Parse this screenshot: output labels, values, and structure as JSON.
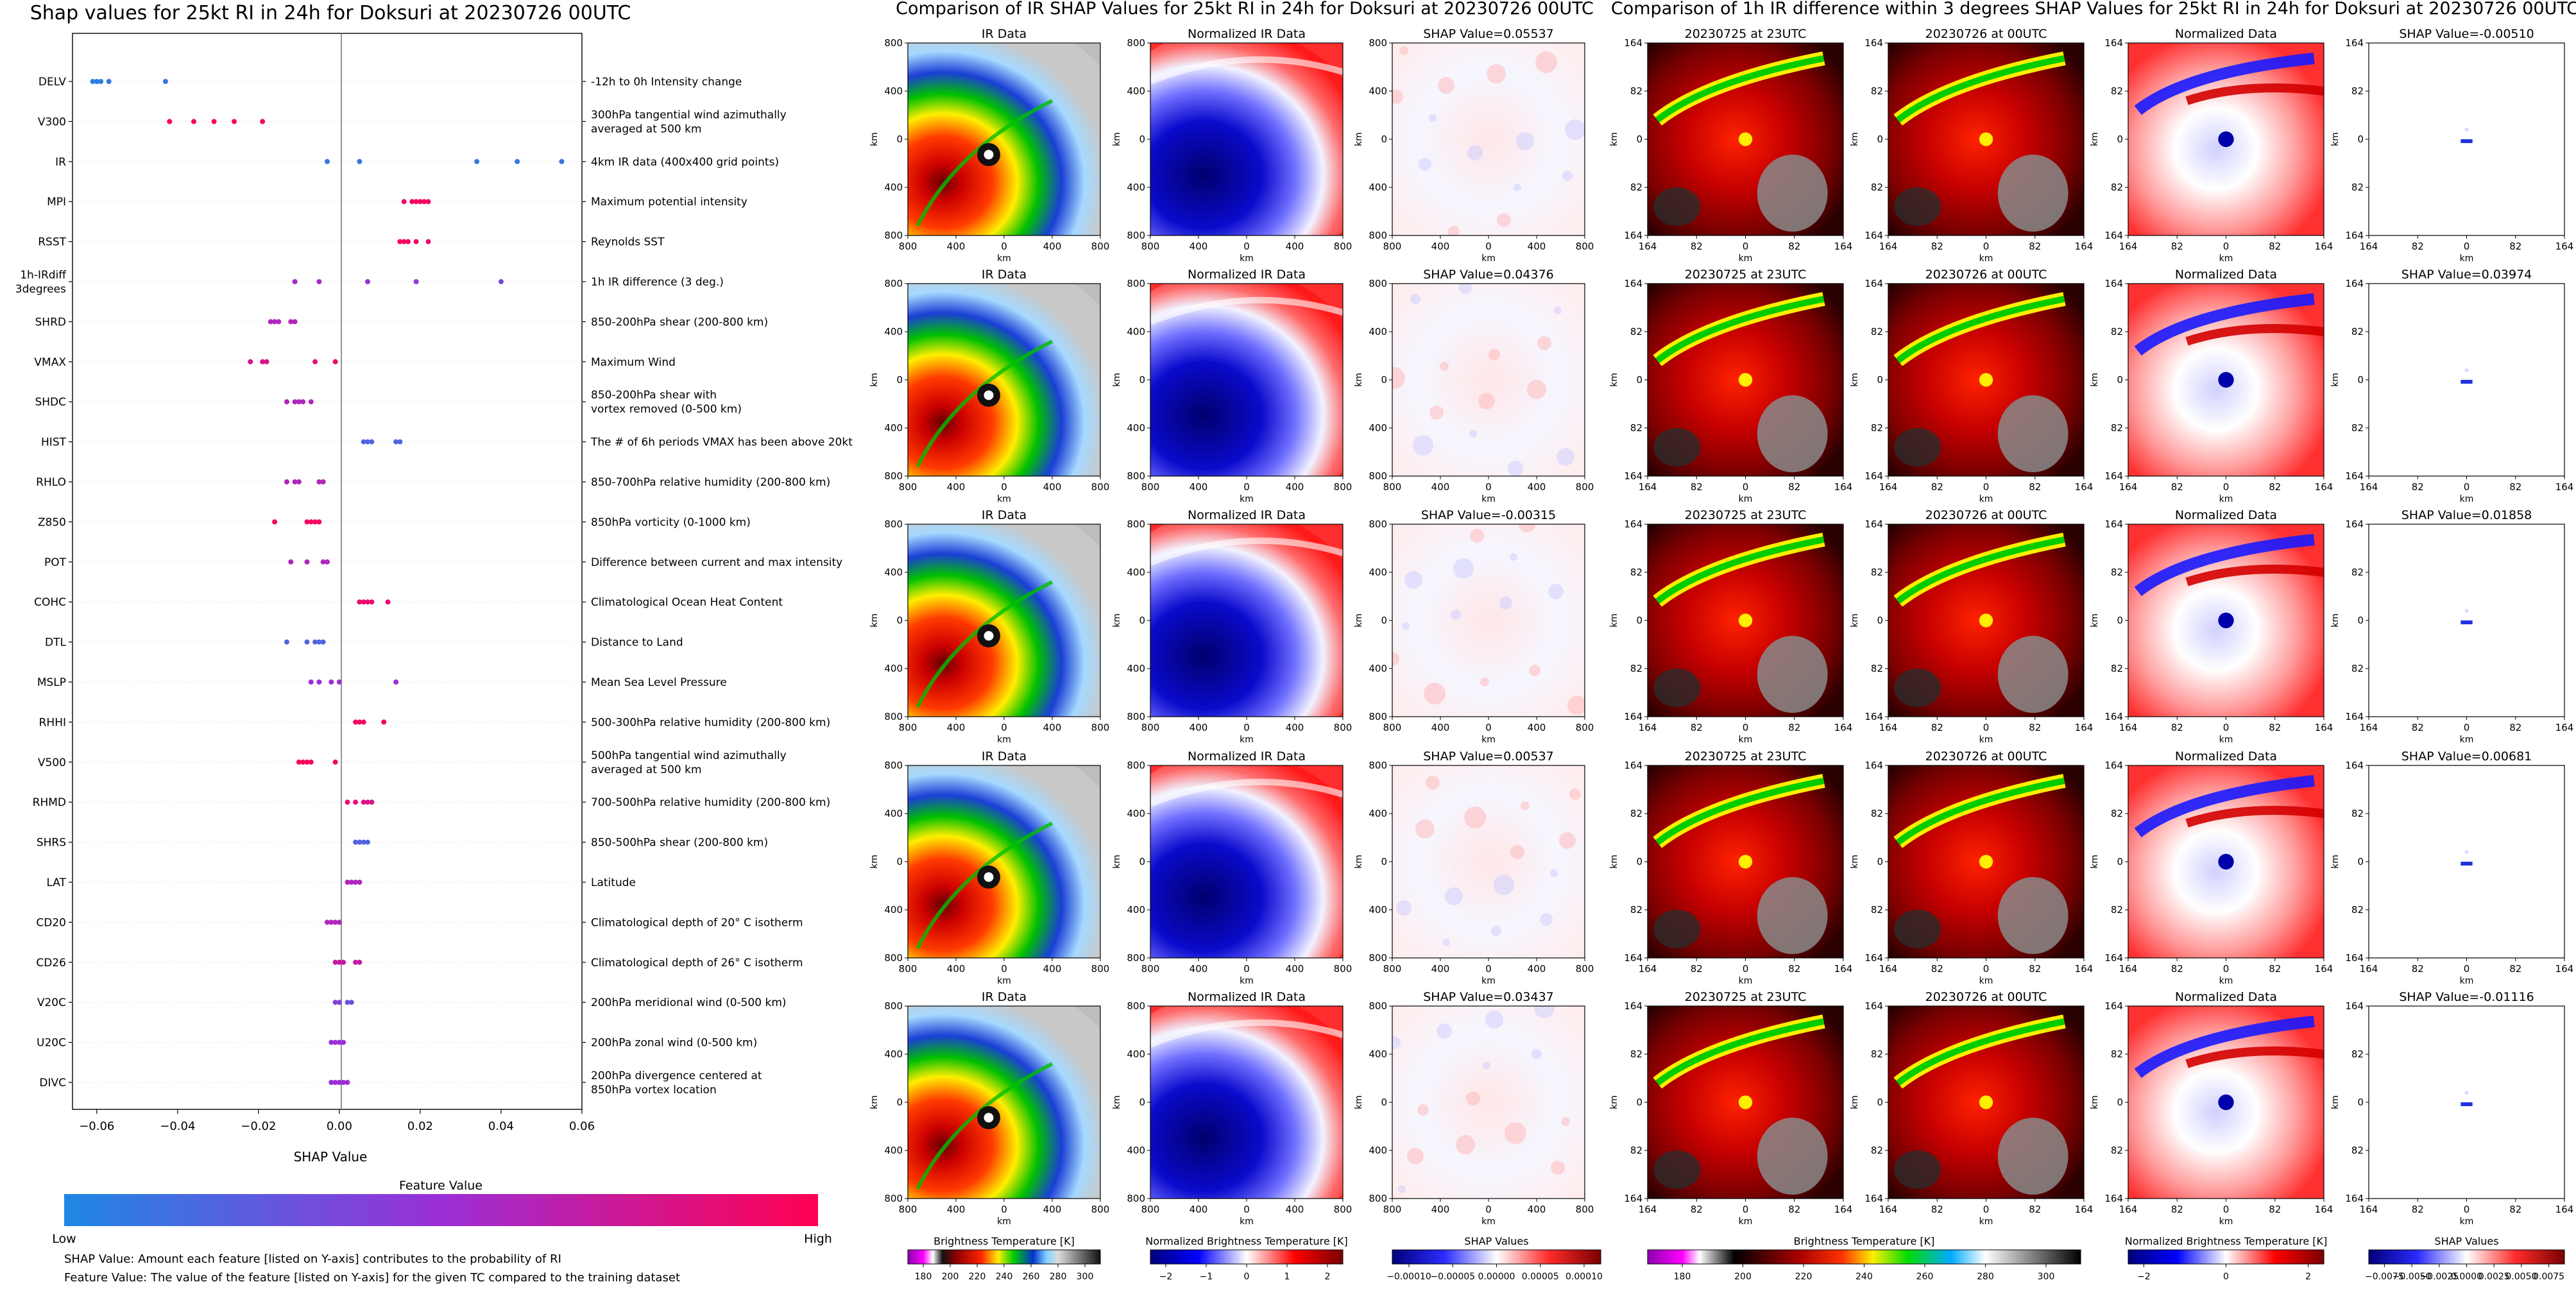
{
  "left_panel": {
    "title": "Shap values for 25kt RI in 24h for Doksuri at 20230726 00UTC",
    "xlabel": "SHAP Value",
    "colorbar_title": "Feature Value",
    "colorbar_low": "Low",
    "colorbar_high": "High",
    "note1": "SHAP Value: Amount each feature [listed on Y-axis] contributes to the probability of RI",
    "note2": "Feature Value: The value of the feature [listed on Y-axis] for the given TC compared to the training dataset",
    "colors": {
      "low": "#1e88e5",
      "high": "#ff0052"
    }
  },
  "middle_panel": {
    "title": "Comparison of IR SHAP Values for 25kt RI in 24h for Doksuri at 20230726 00UTC",
    "col_titles": [
      "IR Data",
      "Normalized IR Data"
    ],
    "shap_titles": [
      "SHAP Value=0.05537",
      "SHAP Value=0.04376",
      "SHAP Value=-0.00315",
      "SHAP Value=0.00537",
      "SHAP Value=0.03437"
    ],
    "axis_unit": "km",
    "xticks": [
      "800",
      "400",
      "0",
      "400",
      "800"
    ],
    "yticks": [
      "800",
      "400",
      "0",
      "400",
      "800"
    ],
    "cb1_label": "Brightness Temperature [K]",
    "cb1_ticks": [
      "180",
      "200",
      "220",
      "240",
      "260",
      "280",
      "300"
    ],
    "cb2_label": "Normalized Brightness Temperature [K]",
    "cb2_ticks": [
      "−2",
      "−1",
      "0",
      "1",
      "2"
    ],
    "cb3_label": "SHAP Values",
    "cb3_ticks": [
      "−0.00010",
      "−0.00005",
      "0.00000",
      "0.00005",
      "0.00010"
    ]
  },
  "right_panel": {
    "title": "Comparison of 1h IR difference within 3 degrees SHAP Values for 25kt RI in 24h for Doksuri at 20230726 00UTC",
    "col_titles": [
      "20230725 at 23UTC",
      "20230726 at 00UTC",
      "Normalized Data"
    ],
    "shap_titles": [
      "SHAP Value=-0.00510",
      "SHAP Value=0.03974",
      "SHAP Value=0.01858",
      "SHAP Value=0.00681",
      "SHAP Value=-0.01116"
    ],
    "axis_unit": "km",
    "xticks": [
      "164",
      "82",
      "0",
      "82",
      "164"
    ],
    "yticks": [
      "164",
      "82",
      "0",
      "82",
      "164"
    ],
    "cb1_label": "Brightness Temperature [K]",
    "cb1_ticks": [
      "180",
      "200",
      "220",
      "240",
      "260",
      "280",
      "300"
    ],
    "cb2_label": "Normalized Brightness Temperature [K]",
    "cb2_ticks": [
      "−2",
      "0",
      "2"
    ],
    "cb3_label": "SHAP Values",
    "cb3_ticks": [
      "−0.0075",
      "−0.0050",
      "−0.0025",
      "0.0000",
      "0.0025",
      "0.0050",
      "0.0075"
    ]
  },
  "chart_data": [
    {
      "type": "scatter",
      "title": "Shap values for 25kt RI in 24h for Doksuri at 20230726 00UTC",
      "xlabel": "SHAP Value",
      "ylabel": "",
      "xlim": [
        -0.066,
        0.06
      ],
      "xticks": [
        "−0.06",
        "−0.04",
        "−0.02",
        "0.00",
        "0.02",
        "0.04",
        "0.06"
      ],
      "features": [
        {
          "code": "DELV",
          "desc": "-12h to 0h Intensity change",
          "points": [
            [
              -0.061,
              0.05
            ],
            [
              -0.06,
              0.05
            ],
            [
              -0.059,
              0.05
            ],
            [
              -0.057,
              0.1
            ],
            [
              -0.043,
              0.1
            ]
          ]
        },
        {
          "code": "V300",
          "desc": "300hPa tangential wind azimuthally\naveraged at 500 km",
          "points": [
            [
              -0.042,
              1
            ],
            [
              -0.036,
              0.95
            ],
            [
              -0.031,
              1
            ],
            [
              -0.026,
              0.95
            ],
            [
              -0.019,
              0.95
            ]
          ]
        },
        {
          "code": "IR",
          "desc": "4km IR data (400x400 grid points)",
          "points": [
            [
              -0.003,
              0.1
            ],
            [
              0.005,
              0.1
            ],
            [
              0.034,
              0.1
            ],
            [
              0.044,
              0.1
            ],
            [
              0.055,
              0.1
            ]
          ]
        },
        {
          "code": "MPI",
          "desc": "Maximum potential intensity",
          "points": [
            [
              0.016,
              0.95
            ],
            [
              0.018,
              0.95
            ],
            [
              0.019,
              0.95
            ],
            [
              0.02,
              0.95
            ],
            [
              0.021,
              0.95
            ],
            [
              0.022,
              0.95
            ]
          ]
        },
        {
          "code": "RSST",
          "desc": "Reynolds SST",
          "points": [
            [
              0.015,
              0.95
            ],
            [
              0.016,
              0.95
            ],
            [
              0.017,
              0.95
            ],
            [
              0.019,
              0.95
            ],
            [
              0.022,
              0.9
            ]
          ]
        },
        {
          "code": "1h-IRdiff\n3degrees",
          "desc": "1h IR difference (3 deg.)",
          "points": [
            [
              -0.011,
              0.55
            ],
            [
              -0.005,
              0.55
            ],
            [
              0.007,
              0.5
            ],
            [
              0.019,
              0.45
            ],
            [
              0.04,
              0.35
            ]
          ]
        },
        {
          "code": "SHRD",
          "desc": "850-200hPa shear (200-800 km)",
          "points": [
            [
              -0.017,
              0.6
            ],
            [
              -0.016,
              0.6
            ],
            [
              -0.015,
              0.6
            ],
            [
              -0.012,
              0.6
            ],
            [
              -0.011,
              0.6
            ]
          ]
        },
        {
          "code": "VMAX",
          "desc": "Maximum Wind",
          "points": [
            [
              -0.022,
              0.8
            ],
            [
              -0.019,
              0.8
            ],
            [
              -0.018,
              0.8
            ],
            [
              -0.006,
              0.85
            ],
            [
              -0.001,
              0.9
            ]
          ]
        },
        {
          "code": "SHDC",
          "desc": "850-200hPa shear with\nvortex removed (0-500 km)",
          "points": [
            [
              -0.013,
              0.6
            ],
            [
              -0.011,
              0.6
            ],
            [
              -0.01,
              0.6
            ],
            [
              -0.009,
              0.6
            ],
            [
              -0.007,
              0.6
            ]
          ]
        },
        {
          "code": "HIST",
          "desc": "The # of 6h periods VMAX has been above 20kt",
          "points": [
            [
              0.006,
              0.2
            ],
            [
              0.007,
              0.2
            ],
            [
              0.008,
              0.2
            ],
            [
              0.014,
              0.2
            ],
            [
              0.015,
              0.2
            ]
          ]
        },
        {
          "code": "RHLO",
          "desc": "850-700hPa relative humidity (200-800 km)",
          "points": [
            [
              -0.013,
              0.6
            ],
            [
              -0.011,
              0.6
            ],
            [
              -0.01,
              0.6
            ],
            [
              -0.005,
              0.6
            ],
            [
              -0.004,
              0.6
            ]
          ]
        },
        {
          "code": "Z850",
          "desc": "850hPa vorticity (0-1000 km)",
          "points": [
            [
              -0.016,
              0.95
            ],
            [
              -0.008,
              0.95
            ],
            [
              -0.007,
              0.95
            ],
            [
              -0.006,
              0.95
            ],
            [
              -0.005,
              0.95
            ]
          ]
        },
        {
          "code": "POT",
          "desc": "Difference between current and max intensity",
          "points": [
            [
              -0.012,
              0.6
            ],
            [
              -0.008,
              0.6
            ],
            [
              -0.004,
              0.6
            ],
            [
              -0.003,
              0.6
            ]
          ]
        },
        {
          "code": "COHC",
          "desc": "Climatological Ocean Heat Content",
          "points": [
            [
              0.005,
              0.9
            ],
            [
              0.006,
              0.9
            ],
            [
              0.007,
              0.9
            ],
            [
              0.008,
              0.9
            ],
            [
              0.012,
              0.9
            ]
          ]
        },
        {
          "code": "DTL",
          "desc": "Distance to Land",
          "points": [
            [
              -0.013,
              0.2
            ],
            [
              -0.008,
              0.2
            ],
            [
              -0.006,
              0.2
            ],
            [
              -0.005,
              0.2
            ],
            [
              -0.004,
              0.2
            ]
          ]
        },
        {
          "code": "MSLP",
          "desc": "Mean Sea Level Pressure",
          "points": [
            [
              -0.007,
              0.5
            ],
            [
              -0.005,
              0.5
            ],
            [
              -0.002,
              0.5
            ],
            [
              0.0,
              0.5
            ],
            [
              0.014,
              0.5
            ]
          ]
        },
        {
          "code": "RHHI",
          "desc": "500-300hPa relative humidity (200-800 km)",
          "points": [
            [
              0.004,
              0.95
            ],
            [
              0.005,
              0.95
            ],
            [
              0.006,
              0.95
            ],
            [
              0.011,
              0.95
            ]
          ]
        },
        {
          "code": "V500",
          "desc": "500hPa tangential wind azimuthally\naveraged at 500 km",
          "points": [
            [
              -0.01,
              0.95
            ],
            [
              -0.009,
              0.95
            ],
            [
              -0.008,
              0.95
            ],
            [
              -0.007,
              0.95
            ],
            [
              -0.001,
              0.95
            ]
          ]
        },
        {
          "code": "RHMD",
          "desc": "700-500hPa relative humidity (200-800 km)",
          "points": [
            [
              0.002,
              0.9
            ],
            [
              0.004,
              0.85
            ],
            [
              0.006,
              0.8
            ],
            [
              0.007,
              0.8
            ],
            [
              0.008,
              0.8
            ]
          ]
        },
        {
          "code": "SHRS",
          "desc": "850-500hPa shear (200-800 km)",
          "points": [
            [
              0.004,
              0.2
            ],
            [
              0.005,
              0.2
            ],
            [
              0.006,
              0.2
            ],
            [
              0.007,
              0.2
            ]
          ]
        },
        {
          "code": "LAT",
          "desc": "Latitude",
          "points": [
            [
              0.002,
              0.6
            ],
            [
              0.003,
              0.6
            ],
            [
              0.004,
              0.6
            ],
            [
              0.005,
              0.6
            ]
          ]
        },
        {
          "code": "CD20",
          "desc": "Climatological depth of 20° C isotherm",
          "points": [
            [
              -0.003,
              0.6
            ],
            [
              -0.002,
              0.6
            ],
            [
              -0.001,
              0.6
            ],
            [
              0.0,
              0.6
            ]
          ]
        },
        {
          "code": "CD26",
          "desc": "Climatological depth of 26° C isotherm",
          "points": [
            [
              -0.001,
              0.7
            ],
            [
              0.0,
              0.7
            ],
            [
              0.001,
              0.7
            ],
            [
              0.004,
              0.7
            ],
            [
              0.005,
              0.7
            ]
          ]
        },
        {
          "code": "V20C",
          "desc": "200hPa meridional wind (0-500 km)",
          "points": [
            [
              -0.001,
              0.4
            ],
            [
              0.0,
              0.4
            ],
            [
              0.002,
              0.3
            ],
            [
              0.003,
              0.3
            ]
          ]
        },
        {
          "code": "U20C",
          "desc": "200hPa zonal wind (0-500 km)",
          "points": [
            [
              -0.002,
              0.5
            ],
            [
              -0.001,
              0.5
            ],
            [
              0.0,
              0.5
            ],
            [
              0.001,
              0.5
            ]
          ]
        },
        {
          "code": "DIVC",
          "desc": "200hPa divergence centered at\n850hPa vortex location",
          "points": [
            [
              -0.002,
              0.5
            ],
            [
              -0.001,
              0.5
            ],
            [
              0.0,
              0.5
            ],
            [
              0.001,
              0.5
            ],
            [
              0.002,
              0.5
            ]
          ]
        }
      ]
    }
  ]
}
